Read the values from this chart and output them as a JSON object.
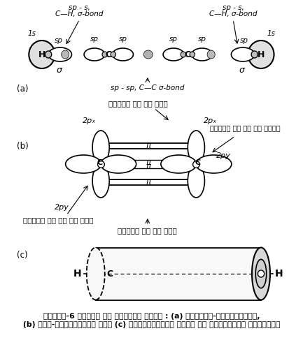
{
  "background_color": "#ffffff",
  "title_line1": "चित्र-6 एथाइन का कक्षीय आरेख : (a) सिग्मा-अतिव्यापन,",
  "title_line2": "(b) पाई-अतिव्यापन तथा (c) इलेक्ट्रॉन अभ्र की बेलनाकार प्रकृति",
  "label_a": "(a)",
  "label_b": "(b)",
  "label_c": "(c)",
  "sp_s_bond": "sp - s,",
  "CH_bond": "C—H, σ-bond",
  "sp_sp_bond": "sp - sp, C—C σ-bond",
  "text_1s": "1s",
  "text_sp": "sp",
  "text_sigma": "σ",
  "text_H": "H",
  "text_C": "C",
  "text_2px": "2pₓ",
  "text_2py": "2py",
  "text_pi": "π",
  "prishth_mein": "पृष्ठ के तल में",
  "prishth_neeche": "पृष्ठ के तल के नीचे",
  "prishth_upar": "पृष्ठ के तल के ऊपर"
}
